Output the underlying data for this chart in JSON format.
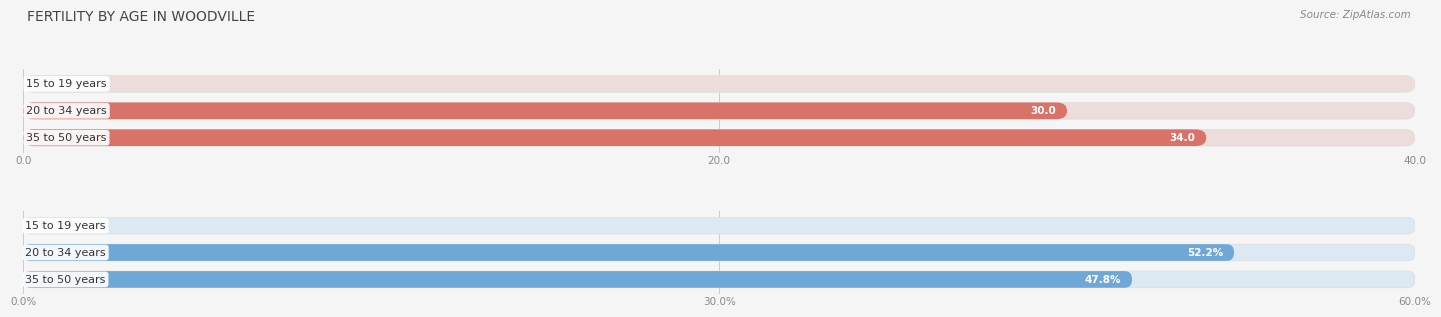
{
  "title": "FERTILITY BY AGE IN WOODVILLE",
  "source": "Source: ZipAtlas.com",
  "top_section": {
    "categories": [
      "15 to 19 years",
      "20 to 34 years",
      "35 to 50 years"
    ],
    "values": [
      0.0,
      30.0,
      34.0
    ],
    "xlim": [
      0,
      40
    ],
    "xticks": [
      0.0,
      20.0,
      40.0
    ],
    "xtick_labels": [
      "0.0",
      "20.0",
      "40.0"
    ],
    "bar_color": "#d9736a",
    "bar_bg_color": "#ecdcdb",
    "value_color_inside": "#ffffff",
    "value_color_outside": "#666666"
  },
  "bottom_section": {
    "categories": [
      "15 to 19 years",
      "20 to 34 years",
      "35 to 50 years"
    ],
    "values": [
      0.0,
      52.2,
      47.8
    ],
    "xlim": [
      0,
      60
    ],
    "xticks": [
      0.0,
      30.0,
      60.0
    ],
    "xtick_labels": [
      "0.0%",
      "30.0%",
      "60.0%"
    ],
    "bar_color": "#6fa8d6",
    "bar_bg_color": "#dce8f2",
    "value_color_inside": "#ffffff",
    "value_color_outside": "#666666"
  },
  "background_color": "#f5f5f5",
  "bar_height": 0.62,
  "bar_gap": 0.15,
  "label_fontsize": 7.5,
  "tick_fontsize": 7.5,
  "category_fontsize": 8,
  "title_fontsize": 10,
  "source_fontsize": 7.5,
  "title_color": "#444444",
  "source_color": "#888888",
  "tick_color": "#888888",
  "grid_color": "#cccccc"
}
